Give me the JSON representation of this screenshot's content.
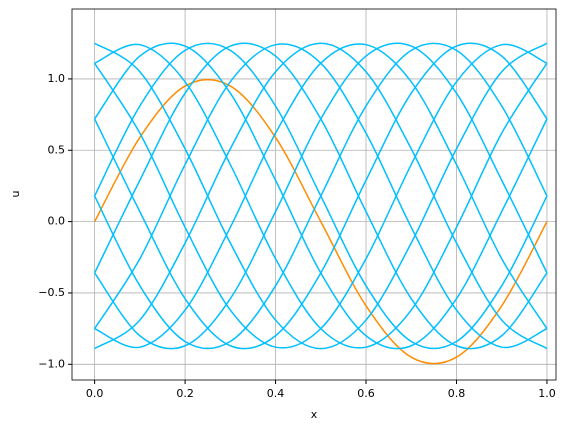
{
  "chart_data": {
    "type": "line",
    "x_label": "x",
    "y_label": "u",
    "x": [
      0,
      0.1,
      0.2,
      0.3,
      0.4,
      0.5,
      0.6,
      0.7,
      0.8,
      0.9,
      1.0
    ],
    "series": [
      {
        "color": "#ff8c00",
        "values": [
          0,
          0.59,
          0.95,
          0.95,
          0.59,
          0,
          -0.59,
          -0.95,
          -0.95,
          -0.59,
          0
        ]
      },
      {
        "color": "#00bfff",
        "values": [
          -0.36,
          0.29,
          0.9,
          1.23,
          1.16,
          0.72,
          0.07,
          -0.54,
          -0.87,
          -0.8,
          -0.36
        ]
      },
      {
        "color": "#00bfff",
        "values": [
          -0.75,
          -0.26,
          0.4,
          0.98,
          1.24,
          1.11,
          0.62,
          -0.04,
          -0.62,
          -0.88,
          -0.75
        ]
      },
      {
        "color": "#00bfff",
        "values": [
          -0.89,
          -0.69,
          -0.15,
          0.51,
          1.05,
          1.25,
          1.05,
          0.51,
          -0.15,
          -0.69,
          -0.89
        ]
      },
      {
        "color": "#00bfff",
        "values": [
          -0.75,
          -0.88,
          -0.62,
          -0.04,
          0.62,
          1.11,
          1.24,
          0.98,
          0.4,
          -0.26,
          -0.75
        ]
      },
      {
        "color": "#00bfff",
        "values": [
          -0.36,
          -0.8,
          -0.87,
          -0.54,
          0.07,
          0.72,
          1.16,
          1.23,
          0.9,
          0.29,
          -0.36
        ]
      },
      {
        "color": "#00bfff",
        "values": [
          0.18,
          -0.45,
          -0.84,
          -0.84,
          -0.45,
          0.18,
          0.81,
          1.2,
          1.2,
          0.81,
          0.18
        ]
      },
      {
        "color": "#00bfff",
        "values": [
          0.72,
          0.07,
          -0.54,
          -0.87,
          -0.8,
          -0.36,
          0.29,
          0.9,
          1.23,
          1.16,
          0.72
        ]
      },
      {
        "color": "#00bfff",
        "values": [
          1.11,
          0.62,
          -0.04,
          -0.62,
          -0.88,
          -0.75,
          -0.26,
          0.4,
          0.98,
          1.24,
          1.11
        ]
      },
      {
        "color": "#00bfff",
        "values": [
          1.25,
          1.05,
          0.51,
          -0.15,
          -0.69,
          -0.89,
          -0.69,
          -0.15,
          0.51,
          1.05,
          1.25
        ]
      },
      {
        "color": "#00bfff",
        "values": [
          1.11,
          1.24,
          0.98,
          0.4,
          -0.26,
          -0.75,
          -0.88,
          -0.62,
          -0.04,
          0.62,
          1.11
        ]
      },
      {
        "color": "#00bfff",
        "values": [
          0.72,
          1.16,
          1.23,
          0.9,
          0.29,
          -0.36,
          -0.8,
          -0.87,
          -0.54,
          0.07,
          0.72
        ]
      },
      {
        "color": "#00bfff",
        "values": [
          0.18,
          0.81,
          1.2,
          1.2,
          0.81,
          0.18,
          -0.45,
          -0.84,
          -0.84,
          -0.45,
          0.18
        ]
      }
    ],
    "xlim": [
      -0.05,
      1.02
    ],
    "ylim": [
      -1.11,
      1.49
    ],
    "xticks": [
      {
        "value": 0,
        "label": "0.0"
      },
      {
        "value": 0.2,
        "label": "0.2"
      },
      {
        "value": 0.4,
        "label": "0.4"
      },
      {
        "value": 0.6,
        "label": "0.6"
      },
      {
        "value": 0.8,
        "label": "0.8"
      },
      {
        "value": 1.0,
        "label": "1.0"
      }
    ],
    "yticks": [
      {
        "value": -1.0,
        "label": "−1.0"
      },
      {
        "value": -0.5,
        "label": "−0.5"
      },
      {
        "value": 0,
        "label": "0.0"
      },
      {
        "value": 0.5,
        "label": "0.5"
      },
      {
        "value": 1.0,
        "label": "1.0"
      }
    ],
    "grid": true
  }
}
